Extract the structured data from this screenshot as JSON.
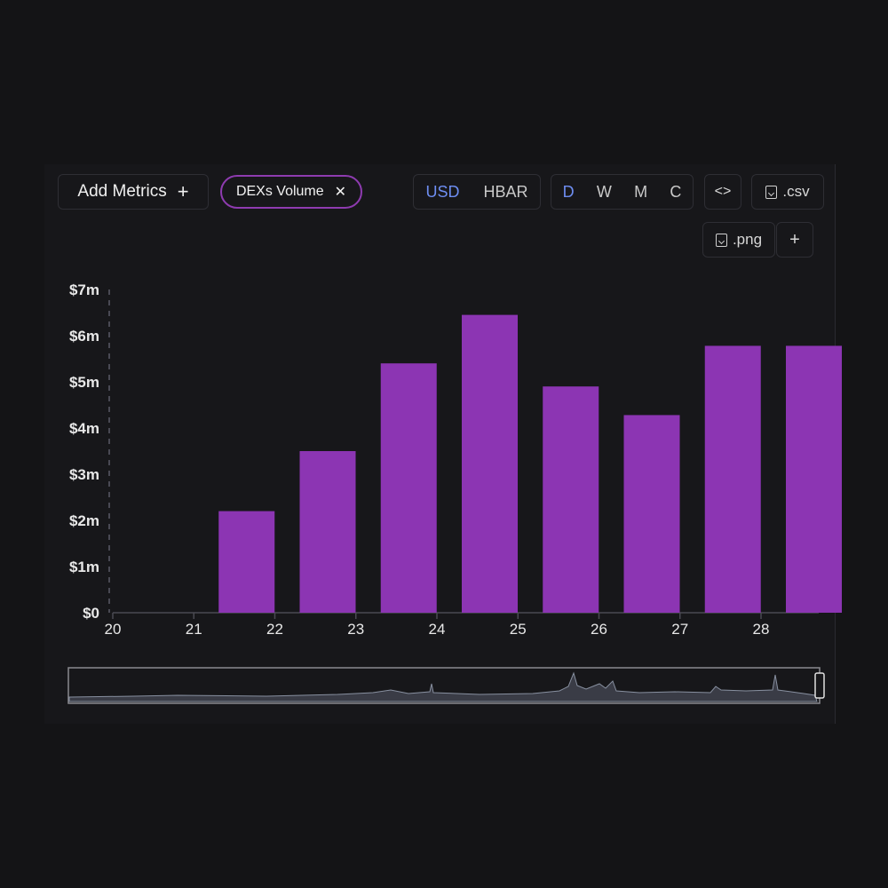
{
  "toolbar": {
    "add_metrics_label": "Add Metrics",
    "add_icon": "+",
    "active_metric": "DEXs Volume",
    "remove_icon": "✕",
    "currency_options": [
      "USD",
      "HBAR"
    ],
    "currency_selected": "USD",
    "period_options": [
      "D",
      "W",
      "M",
      "C"
    ],
    "period_selected": "D",
    "embed_icon": "<>",
    "csv_label": ".csv",
    "png_label": ".png",
    "more_icon": "+"
  },
  "colors": {
    "bar": "#8c35b3",
    "active_tab": "#6e8ef2",
    "pill_border": "#8e3bb0"
  },
  "chart_data": {
    "type": "bar",
    "categories": [
      "21",
      "22",
      "23",
      "24",
      "25",
      "26",
      "27",
      "28"
    ],
    "x_ticks": [
      "20",
      "21",
      "22",
      "23",
      "24",
      "25",
      "26",
      "27",
      "28"
    ],
    "values": [
      2.2,
      3.5,
      5.4,
      6.45,
      4.9,
      4.28,
      5.78,
      5.78
    ],
    "y_ticks": [
      "$0",
      "$1m",
      "$2m",
      "$3m",
      "$4m",
      "$5m",
      "$6m",
      "$7m"
    ],
    "ylim": [
      0,
      7
    ],
    "title": "",
    "xlabel": "",
    "ylabel": ""
  }
}
